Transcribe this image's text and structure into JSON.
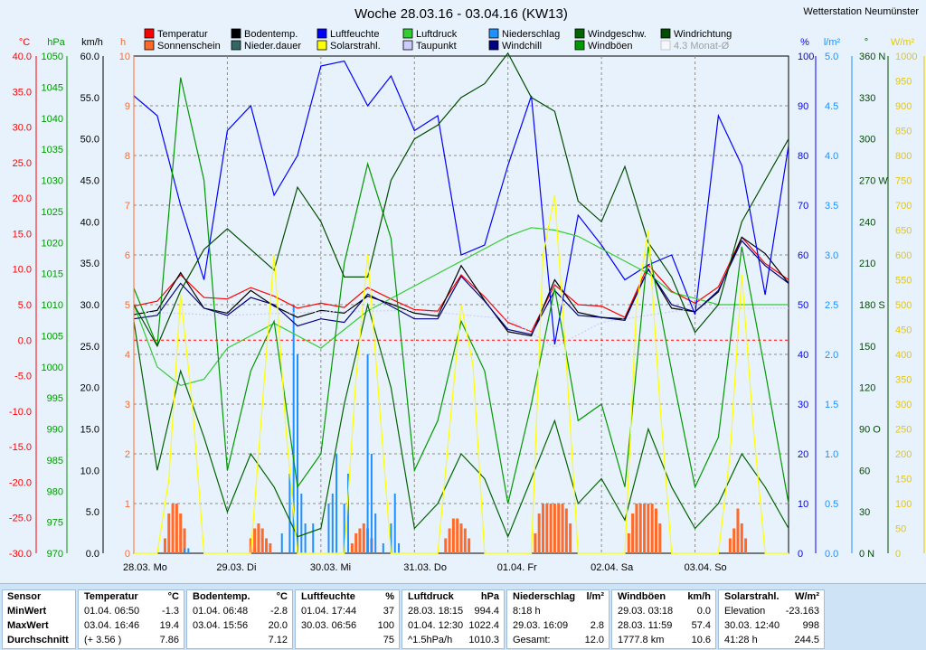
{
  "title": "Woche 28.03.16 - 03.04.16 (KW13)",
  "station": "Wetterstation Neumünster",
  "legend": [
    {
      "name": "Temperatur",
      "color": "#ff0000"
    },
    {
      "name": "Bodentemp.",
      "color": "#000000"
    },
    {
      "name": "Luftfeuchte",
      "color": "#0000ff"
    },
    {
      "name": "Luftdruck",
      "color": "#33cc33"
    },
    {
      "name": "Niederschlag",
      "color": "#1e90ff"
    },
    {
      "name": "Windgeschw.",
      "color": "#006400"
    },
    {
      "name": "Windrichtung",
      "color": "#004d00"
    },
    {
      "name": "Sonnenschein",
      "color": "#ff6a2a"
    },
    {
      "name": "Nieder.dauer",
      "color": "#336666"
    },
    {
      "name": "Solarstrahl.",
      "color": "#ffff00"
    },
    {
      "name": "Taupunkt",
      "color": "#ccccff"
    },
    {
      "name": "Windchill",
      "color": "#000080"
    },
    {
      "name": "Windböen",
      "color": "#009900"
    },
    {
      "name": "4.3 Monat-Ø",
      "color": "#c0c0c0"
    }
  ],
  "axes": {
    "temp": {
      "unit": "°C",
      "ticks": [
        "40.0",
        "35.0",
        "30.0",
        "25.0",
        "20.0",
        "15.0",
        "10.0",
        "5.0",
        "0.0",
        "-5.0",
        "-10.0",
        "-15.0",
        "-20.0",
        "-25.0",
        "-30.0"
      ],
      "color": "#ff0000"
    },
    "hpa": {
      "unit": "hPa",
      "ticks": [
        "1050",
        "1045",
        "1040",
        "1035",
        "1030",
        "1025",
        "1020",
        "1015",
        "1010",
        "1005",
        "1000",
        "995",
        "990",
        "985",
        "980",
        "975",
        "970"
      ],
      "color": "#009900"
    },
    "kmh": {
      "unit": "km/h",
      "ticks": [
        "60.0",
        "55.0",
        "50.0",
        "45.0",
        "40.0",
        "35.0",
        "30.0",
        "25.0",
        "20.0",
        "15.0",
        "10.0",
        "5.0",
        "0.0"
      ],
      "color": "#000000"
    },
    "hours": {
      "unit": "h",
      "ticks": [
        "10",
        "9",
        "8",
        "7",
        "6",
        "5",
        "4",
        "3",
        "2",
        "1",
        "0"
      ],
      "color": "#ff6a2a"
    },
    "pct": {
      "unit": "%",
      "ticks": [
        "100",
        "90",
        "80",
        "70",
        "60",
        "50",
        "40",
        "30",
        "20",
        "10",
        "0"
      ],
      "color": "#0000ff"
    },
    "lm2": {
      "unit": "l/m²",
      "ticks": [
        "5.0",
        "4.5",
        "4.0",
        "3.5",
        "3.0",
        "2.5",
        "2.0",
        "1.5",
        "1.0",
        "0.5",
        "0.0"
      ],
      "color": "#1e90ff"
    },
    "deg": {
      "unit": "°",
      "ticks": [
        "360 N",
        "330",
        "300",
        "270 W",
        "240",
        "210",
        "180 S",
        "150",
        "120",
        "90 O",
        "60",
        "30",
        "0 N"
      ],
      "color": "#004d00"
    },
    "wm2": {
      "unit": "W/m²",
      "ticks": [
        "1000",
        "950",
        "900",
        "850",
        "800",
        "750",
        "700",
        "650",
        "600",
        "550",
        "500",
        "450",
        "400",
        "350",
        "300",
        "250",
        "200",
        "150",
        "100",
        "50",
        "0"
      ],
      "color": "#e6c800"
    }
  },
  "chart_data": {
    "type": "line",
    "x_labels": [
      "28.03.  Mo",
      "29.03.  Di",
      "30.03.  Mi",
      "31.03.  Do",
      "01.04.  Fr",
      "02.04.  Sa",
      "03.04.  So"
    ],
    "x_unit": "hours since 28.03. 00:00",
    "series": [
      {
        "name": "Temperatur",
        "axis": "°C",
        "color": "#ff0000",
        "x": [
          0,
          6,
          12,
          18,
          24,
          30,
          36,
          42,
          48,
          54,
          60,
          66,
          72,
          78,
          84,
          90,
          96,
          102,
          108,
          114,
          120,
          126,
          132,
          138,
          144,
          150,
          156,
          162,
          168
        ],
        "y": [
          4.8,
          5.5,
          9.2,
          6.0,
          5.8,
          7.4,
          6.2,
          4.5,
          5.2,
          4.6,
          7.4,
          5.8,
          4.3,
          4.1,
          9.2,
          6.1,
          2.5,
          1.2,
          7.8,
          5.0,
          4.8,
          3.2,
          10.6,
          6.9,
          5.2,
          7.5,
          14.5,
          10.8,
          8.5
        ]
      },
      {
        "name": "Bodentemp.",
        "axis": "°C",
        "color": "#000000",
        "x": [
          0,
          6,
          12,
          18,
          24,
          30,
          36,
          42,
          48,
          54,
          60,
          66,
          72,
          78,
          84,
          90,
          96,
          102,
          108,
          114,
          120,
          126,
          132,
          138,
          144,
          150,
          156,
          162,
          168
        ],
        "y": [
          3.6,
          4.2,
          9.5,
          4.5,
          3.8,
          7.0,
          4.8,
          3.2,
          4.2,
          3.8,
          6.2,
          5.1,
          3.8,
          3.4,
          10.5,
          5.6,
          1.2,
          0.6,
          8.5,
          3.9,
          3.2,
          3.0,
          10.0,
          4.5,
          4.0,
          6.8,
          14.5,
          12.2,
          8.0
        ]
      },
      {
        "name": "Luftfeuchte",
        "axis": "%",
        "color": "#0000ff",
        "x": [
          0,
          6,
          12,
          18,
          24,
          30,
          36,
          42,
          48,
          54,
          60,
          66,
          72,
          78,
          84,
          90,
          96,
          102,
          108,
          114,
          120,
          126,
          132,
          138,
          144,
          150,
          156,
          162,
          168
        ],
        "y": [
          92,
          88,
          70,
          55,
          85,
          90,
          72,
          80,
          98,
          99,
          90,
          96,
          85,
          88,
          60,
          62,
          78,
          92,
          42,
          68,
          62,
          55,
          58,
          60,
          48,
          88,
          78,
          52,
          82
        ]
      },
      {
        "name": "Luftdruck",
        "axis": "hPa",
        "color": "#33cc33",
        "x": [
          0,
          6,
          12,
          18,
          24,
          30,
          36,
          42,
          48,
          54,
          60,
          66,
          72,
          78,
          84,
          90,
          96,
          102,
          108,
          114,
          120,
          126,
          132,
          138,
          144,
          150,
          156,
          162,
          168
        ],
        "y": [
          1010,
          1000,
          997,
          998,
          1003,
          1005,
          1007,
          1005,
          1003,
          1006,
          1009,
          1011,
          1013,
          1015,
          1017,
          1019,
          1021,
          1022.4,
          1022,
          1021,
          1019,
          1017,
          1015,
          1012,
          1011,
          1010,
          1010,
          1010,
          1010
        ]
      },
      {
        "name": "Taupunkt",
        "axis": "°C",
        "color": "#ccccff",
        "x": [
          0,
          24,
          48,
          72,
          96,
          108,
          120,
          144,
          168
        ],
        "y": [
          4,
          3.5,
          4,
          4.2,
          3.0,
          -1.0,
          2.5,
          4.5,
          4.5
        ]
      },
      {
        "name": "Windchill",
        "axis": "°C",
        "color": "#000080",
        "x": [
          0,
          6,
          12,
          18,
          24,
          30,
          36,
          42,
          48,
          54,
          60,
          66,
          72,
          78,
          84,
          90,
          96,
          102,
          108,
          114,
          120,
          126,
          132,
          138,
          144,
          150,
          156,
          162,
          168
        ],
        "y": [
          3.0,
          3.5,
          8.0,
          4.5,
          3.5,
          6.0,
          5.0,
          2.0,
          3.0,
          2.5,
          6.5,
          4.8,
          3.0,
          3.0,
          9.0,
          5.5,
          1.5,
          0.8,
          7.0,
          3.5,
          3.2,
          2.8,
          10.0,
          5.0,
          4.0,
          7.0,
          14.0,
          10.5,
          8.0
        ]
      },
      {
        "name": "Windgeschw.",
        "axis": "km/h",
        "color": "#006400",
        "x": [
          0,
          6,
          12,
          18,
          24,
          30,
          36,
          42,
          48,
          54,
          60,
          66,
          72,
          78,
          84,
          90,
          96,
          102,
          108,
          114,
          120,
          126,
          132,
          138,
          144,
          150,
          156,
          162,
          168
        ],
        "y": [
          28,
          10,
          22,
          14,
          5,
          12,
          8,
          2,
          3,
          18,
          30,
          20,
          3,
          6,
          12,
          9,
          2,
          9,
          16,
          6,
          9,
          4,
          15,
          8,
          3,
          6,
          12,
          8,
          3
        ]
      },
      {
        "name": "Windböen",
        "axis": "km/h",
        "color": "#009900",
        "x": [
          0,
          6,
          12,
          18,
          24,
          30,
          36,
          42,
          48,
          54,
          60,
          66,
          72,
          78,
          84,
          90,
          96,
          102,
          108,
          114,
          120,
          126,
          132,
          138,
          144,
          150,
          156,
          162,
          168
        ],
        "y": [
          32,
          25,
          57.4,
          45,
          10,
          22,
          28,
          8,
          12,
          35,
          47,
          38,
          10,
          16,
          28,
          22,
          6,
          18,
          32,
          16,
          18,
          8,
          37,
          22,
          8,
          14,
          37,
          22,
          6
        ]
      },
      {
        "name": "Windrichtung",
        "axis": "°",
        "color": "#004d00",
        "x": [
          0,
          6,
          12,
          18,
          24,
          30,
          36,
          42,
          48,
          54,
          60,
          66,
          72,
          78,
          84,
          90,
          96,
          102,
          108,
          114,
          120,
          126,
          132,
          138,
          144,
          150,
          156,
          162,
          168
        ],
        "y": [
          180,
          150,
          190,
          220,
          235,
          220,
          205,
          265,
          240,
          200,
          200,
          270,
          300,
          310,
          330,
          340,
          362,
          330,
          320,
          255,
          240,
          280,
          225,
          200,
          160,
          180,
          240,
          270,
          300
        ]
      },
      {
        "name": "Solarstrahl.",
        "axis": "W/m²",
        "color": "#ffff00",
        "x": [
          0,
          6,
          9,
          12,
          15,
          18,
          24,
          30,
          33,
          36,
          39,
          42,
          48,
          54,
          57,
          60,
          63,
          66,
          72,
          78,
          81,
          84,
          87,
          90,
          96,
          102,
          105,
          108,
          111,
          114,
          120,
          126,
          129,
          132,
          135,
          138,
          144,
          150,
          153,
          156,
          159,
          162,
          168
        ],
        "y": [
          0,
          0,
          150,
          520,
          300,
          0,
          0,
          0,
          300,
          600,
          250,
          0,
          0,
          0,
          350,
          600,
          300,
          0,
          0,
          0,
          250,
          500,
          380,
          0,
          0,
          0,
          600,
          720,
          380,
          0,
          0,
          0,
          500,
          650,
          300,
          0,
          0,
          0,
          200,
          560,
          250,
          0,
          0
        ]
      }
    ],
    "bars": [
      {
        "name": "Sonnenschein",
        "axis": "h",
        "color": "#ff6a2a",
        "x": [
          8,
          9,
          10,
          11,
          12,
          13,
          30,
          31,
          32,
          33,
          34,
          35,
          56,
          57,
          58,
          59,
          60,
          61,
          80,
          81,
          82,
          83,
          84,
          85,
          86,
          103,
          104,
          105,
          106,
          107,
          108,
          109,
          110,
          111,
          112,
          127,
          128,
          129,
          130,
          131,
          132,
          133,
          134,
          135,
          153,
          154,
          155,
          156,
          157
        ],
        "y": [
          0.3,
          0.8,
          1.0,
          1.0,
          0.8,
          0.5,
          0.3,
          0.5,
          0.6,
          0.5,
          0.3,
          0.2,
          0.2,
          0.4,
          0.5,
          0.6,
          0.5,
          0.3,
          0.3,
          0.5,
          0.7,
          0.7,
          0.6,
          0.5,
          0.3,
          0.4,
          0.8,
          1.0,
          1.0,
          1.0,
          1.0,
          1.0,
          1.0,
          0.9,
          0.6,
          0.4,
          0.8,
          1.0,
          1.0,
          1.0,
          1.0,
          1.0,
          0.9,
          0.6,
          0.3,
          0.5,
          0.9,
          0.6,
          0.3
        ]
      },
      {
        "name": "Niederschlag",
        "axis": "l/m²",
        "color": "#1e90ff",
        "x": [
          13,
          14,
          38,
          40,
          41,
          42,
          43,
          44,
          46,
          50,
          51,
          52,
          54,
          55,
          60,
          61,
          62,
          64,
          66,
          67,
          68
        ],
        "y": [
          0.05,
          0.05,
          0.2,
          0.8,
          2.5,
          2.0,
          0.6,
          0.3,
          0.3,
          0.5,
          0.6,
          1.0,
          0.5,
          0.8,
          2.0,
          1.0,
          0.4,
          0.1,
          0.3,
          0.6,
          0.1
        ]
      }
    ]
  },
  "stats": {
    "columns": [
      {
        "label": "Sensor",
        "unit": "",
        "rows": [
          "MinWert",
          "MaxWert",
          "Durchschnitt"
        ]
      },
      {
        "label": "Temperatur",
        "unit": "°C",
        "rows": [
          [
            "01.04.  06:50",
            "-1.3"
          ],
          [
            "03.04.  16:46",
            "19.4"
          ],
          [
            "(+ 3.56 )",
            "7.86"
          ]
        ]
      },
      {
        "label": "Bodentemp.",
        "unit": "°C",
        "rows": [
          [
            "01.04.  06:48",
            "-2.8"
          ],
          [
            "03.04.  15:56",
            "20.0"
          ],
          [
            "",
            "7.12"
          ]
        ]
      },
      {
        "label": "Luftfeuchte",
        "unit": "%",
        "rows": [
          [
            "01.04.  17:44",
            "37"
          ],
          [
            "30.03.  06:56",
            "100"
          ],
          [
            "",
            "75"
          ]
        ]
      },
      {
        "label": "Luftdruck",
        "unit": "hPa",
        "rows": [
          [
            "28.03.  18:15",
            "994.4"
          ],
          [
            "01.04.  12:30",
            "1022.4"
          ],
          [
            "^1.5hPa/h",
            "1010.3"
          ]
        ]
      },
      {
        "label": "Niederschlag",
        "unit": "l/m²",
        "rows": [
          [
            "8:18 h",
            ""
          ],
          [
            "29.03.  16:09",
            "2.8"
          ],
          [
            "Gesamt:",
            "12.0"
          ]
        ]
      },
      {
        "label": "Windböen",
        "unit": "km/h",
        "rows": [
          [
            "29.03.  03:18",
            "0.0"
          ],
          [
            "28.03.  11:59",
            "57.4"
          ],
          [
            "1777.8 km",
            "10.6"
          ]
        ]
      },
      {
        "label": "Solarstrahl.",
        "unit": "W/m²",
        "rows": [
          [
            "Elevation",
            "-23.163"
          ],
          [
            "30.03.  12:40",
            "998"
          ],
          [
            "41:28 h",
            "244.5"
          ]
        ]
      }
    ]
  }
}
